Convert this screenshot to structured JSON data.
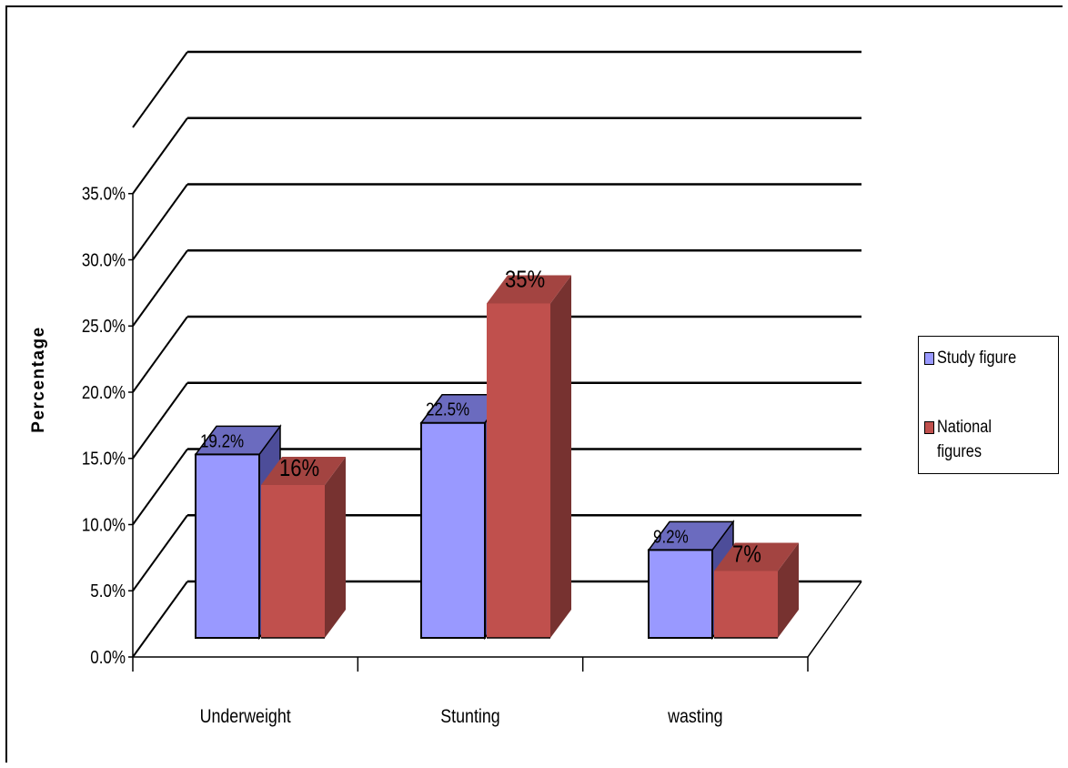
{
  "chart_data": {
    "type": "bar",
    "categories": [
      "Underweight",
      "Stunting",
      "wasting"
    ],
    "series": [
      {
        "name": "Study figure",
        "values": [
          19.2,
          22.5,
          9.2
        ],
        "labels": [
          "19.2%",
          "22.5%",
          "9.2%"
        ],
        "color": "#9999FF"
      },
      {
        "name": "National figures",
        "values": [
          16,
          35,
          7
        ],
        "labels": [
          "16%",
          "35%",
          "7%"
        ],
        "color": "#C0504D"
      }
    ],
    "ylabel": "Percentage",
    "yticks": [
      "0.0%",
      "5.0%",
      "10.0%",
      "15.0%",
      "20.0%",
      "25.0%",
      "30.0%",
      "35.0%"
    ],
    "ylim": [
      0,
      40
    ],
    "grid": true,
    "style": "3d-clustered-column",
    "legend": "right"
  }
}
